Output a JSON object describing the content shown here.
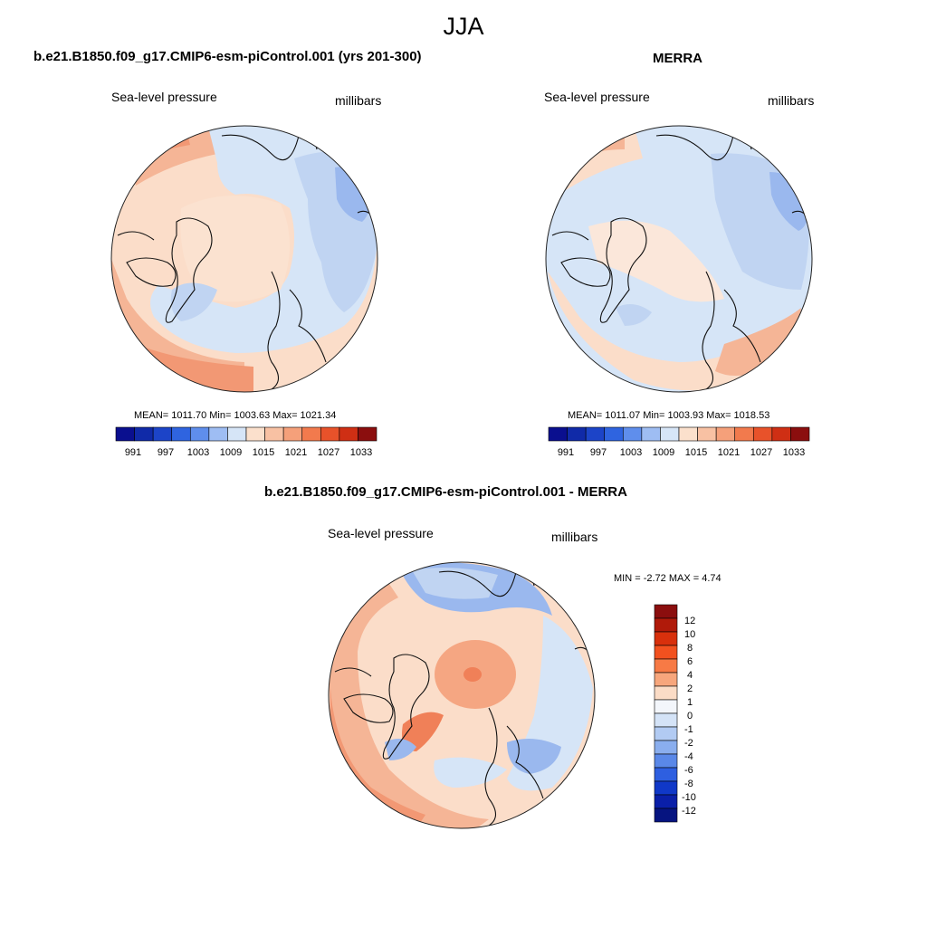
{
  "page": {
    "title": "JJA",
    "colors": {
      "blue_dark": "#0a0f8f",
      "blue_mid": "#4f7fe8",
      "blue_light": "#d6e5f7",
      "neutral": "#f3f6fb",
      "orange_light": "#fbddc9",
      "orange_mid": "#f5a682",
      "red_dark": "#8b0e0e"
    }
  },
  "panels": [
    {
      "heading": "b.e21.B1850.f09_g17.CMIP6-esm-piControl.001 (yrs 201-300)",
      "variable": "Sea-level pressure",
      "units": "millibars",
      "stats": "MEAN= 1011.70  Min= 1003.63  Max= 1021.34",
      "colorbar_ticks": [
        "991",
        "997",
        "1003",
        "1009",
        "1015",
        "1021",
        "1027",
        "1033"
      ]
    },
    {
      "heading": "MERRA",
      "variable": "Sea-level pressure",
      "units": "millibars",
      "stats": "MEAN= 1011.07  Min= 1003.93  Max= 1018.53",
      "colorbar_ticks": [
        "991",
        "997",
        "1003",
        "1009",
        "1015",
        "1021",
        "1027",
        "1033"
      ]
    }
  ],
  "difference": {
    "heading": "b.e21.B1850.f09_g17.CMIP6-esm-piControl.001 - MERRA",
    "variable": "Sea-level pressure",
    "units": "millibars",
    "minmax": "MIN =  -2.72 MAX =   4.74",
    "colorbar_ticks": [
      "12",
      "10",
      "8",
      "6",
      "4",
      "2",
      "1",
      "0",
      "-1",
      "-2",
      "-4",
      "-6",
      "-8",
      "-10",
      "-12"
    ]
  }
}
